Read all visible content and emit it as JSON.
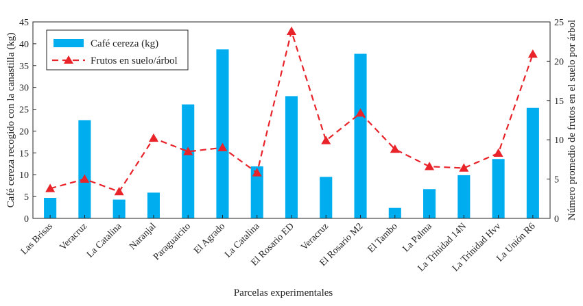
{
  "chart_data": {
    "type": "bar",
    "categories": [
      "Las Brisas",
      "Veracruz",
      "La Catalina",
      "Naranjal",
      "Paraguaicito",
      "El Agrado",
      "La Catalina",
      "El Rosario ED",
      "Veracruz",
      "El Rosario M2",
      "El Tambo",
      "La Palma",
      "La Trinidad 14N",
      "La Trinidad Hvv",
      "La Unión R6"
    ],
    "series": [
      {
        "name": "Café cereza (kg)",
        "type": "bar",
        "axis": "left",
        "color": "#00AEEF",
        "values": [
          4.7,
          22.5,
          4.3,
          5.9,
          26.1,
          38.7,
          11.9,
          28.0,
          9.5,
          37.7,
          2.4,
          6.7,
          9.9,
          13.6,
          25.3
        ]
      },
      {
        "name": "Frutos en suelo/árbol",
        "type": "line",
        "axis": "right",
        "color": "#E8232A",
        "values": [
          3.8,
          5.0,
          3.4,
          10.2,
          8.5,
          9.0,
          5.8,
          23.8,
          9.9,
          13.4,
          8.8,
          6.6,
          6.4,
          8.3,
          20.9
        ]
      }
    ],
    "xlabel": "Parcelas experimentales",
    "ylabel": "Café cereza recogido con la canastilla (kg)",
    "y2label": "Número promedio de frutos en el suelo por árbol",
    "ylim": [
      0,
      45
    ],
    "y2lim": [
      0,
      25
    ],
    "yticks": [
      "0",
      "5",
      "10",
      "15",
      "20",
      "25",
      "30",
      "35",
      "40",
      "45"
    ],
    "y2ticks": [
      "0",
      "5",
      "10",
      "15",
      "20",
      "25"
    ],
    "grid": false,
    "legend": "top-left"
  }
}
